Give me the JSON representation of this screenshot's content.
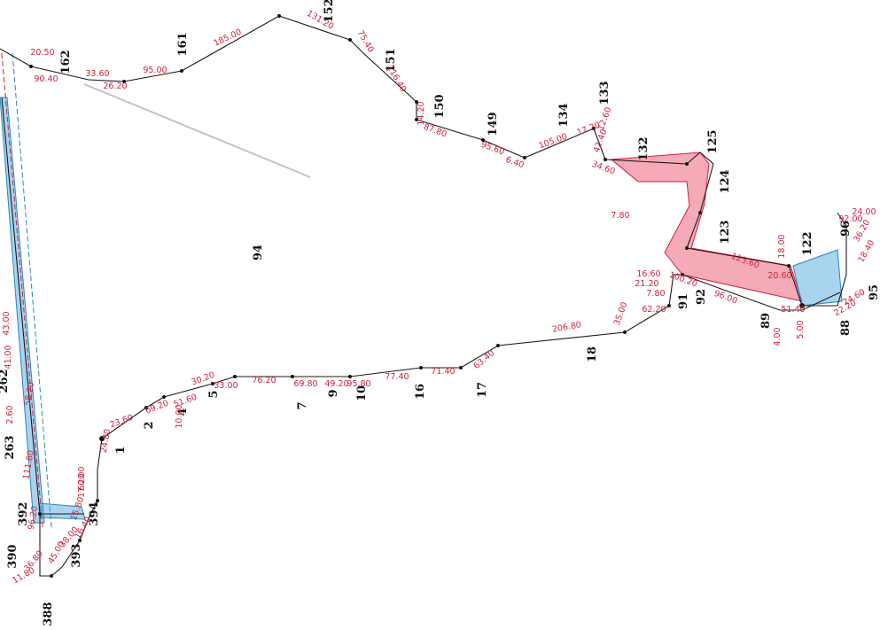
{
  "colors": {
    "boundary": "#1a1a1a",
    "dimension_text": "#d3213a",
    "pink_strip": "#e8425f",
    "blue_strip": "#3ea0d8"
  },
  "parcel_labels": [
    {
      "id": "94",
      "text": "94"
    },
    {
      "id": "162",
      "text": "162"
    },
    {
      "id": "161",
      "text": "161"
    },
    {
      "id": "152",
      "text": "152"
    },
    {
      "id": "151",
      "text": "151"
    },
    {
      "id": "150",
      "text": "150"
    },
    {
      "id": "149",
      "text": "149"
    },
    {
      "id": "134",
      "text": "134"
    },
    {
      "id": "133",
      "text": "133"
    },
    {
      "id": "132",
      "text": "132"
    },
    {
      "id": "125",
      "text": "125"
    },
    {
      "id": "124",
      "text": "124"
    },
    {
      "id": "123",
      "text": "123"
    },
    {
      "id": "122",
      "text": "122"
    },
    {
      "id": "96",
      "text": "96"
    },
    {
      "id": "95",
      "text": "95"
    },
    {
      "id": "91",
      "text": "91"
    },
    {
      "id": "92",
      "text": "92"
    },
    {
      "id": "89",
      "text": "89"
    },
    {
      "id": "88",
      "text": "88"
    },
    {
      "id": "18",
      "text": "18"
    },
    {
      "id": "17",
      "text": "17"
    },
    {
      "id": "16",
      "text": "16"
    },
    {
      "id": "10",
      "text": "10"
    },
    {
      "id": "9",
      "text": "9"
    },
    {
      "id": "7",
      "text": "7"
    },
    {
      "id": "5",
      "text": "5"
    },
    {
      "id": "4",
      "text": "4"
    },
    {
      "id": "2",
      "text": "2"
    },
    {
      "id": "1",
      "text": "1"
    },
    {
      "id": "262",
      "text": "262"
    },
    {
      "id": "263",
      "text": "263"
    },
    {
      "id": "392",
      "text": "392"
    },
    {
      "id": "394",
      "text": "394"
    },
    {
      "id": "393",
      "text": "393"
    },
    {
      "id": "390",
      "text": "390"
    },
    {
      "id": "388",
      "text": "388"
    }
  ],
  "dimension_labels": [
    "20.50",
    "90.40",
    "33.60",
    "26.20",
    "95.00",
    "185.00",
    "131.20",
    "75.40",
    "116.40",
    "14.20",
    "87.80",
    "95.60",
    "6.40",
    "105.00",
    "17.20",
    "12.60",
    "42.40",
    "34.60",
    "62.20",
    "35.00",
    "206.80",
    "63.40",
    "71.40",
    "77.40",
    "95.80",
    "49.20",
    "69.80",
    "76.20",
    "33.00",
    "30.20",
    "51.60",
    "10.00",
    "69.20",
    "23.60",
    "24.80",
    "60.00",
    "17.20",
    "15.80",
    "16.40",
    "38.00",
    "45.00",
    "11.80",
    "36.80",
    "96.20",
    "111.80",
    "2.60",
    "58.20",
    "41.00",
    "43.00",
    "16.60",
    "21.20",
    "7.80",
    "100.20",
    "96.00",
    "4.00",
    "5.00",
    "51.40",
    "22.20",
    "24.60",
    "18.00",
    "20.60",
    "123.60",
    "92.00",
    "36.20",
    "18.40",
    "24.00",
    "7.80"
  ]
}
